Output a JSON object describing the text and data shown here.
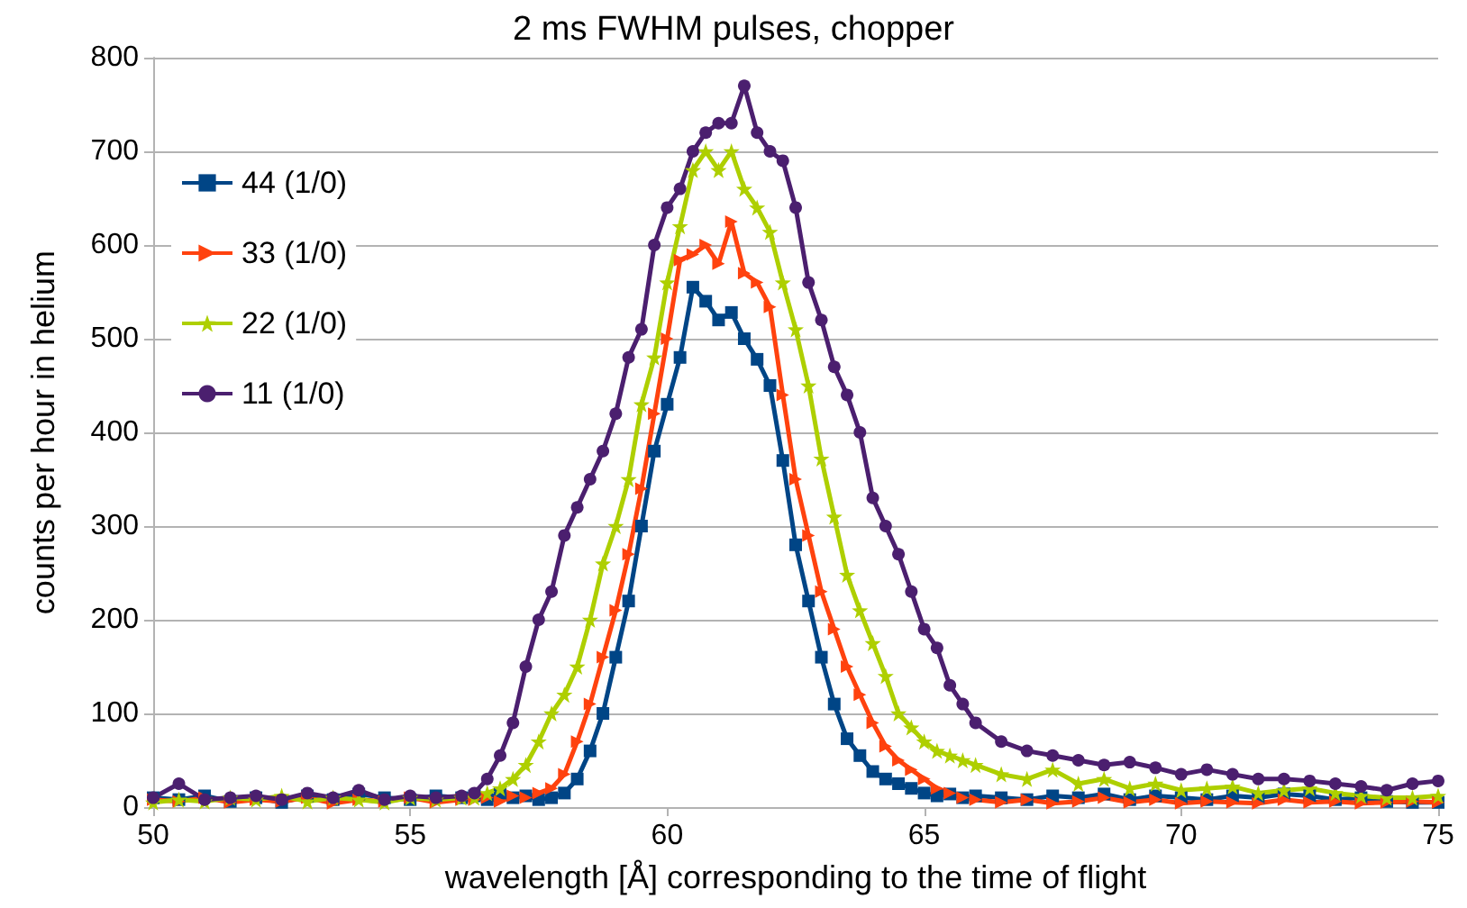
{
  "chart_data": {
    "type": "line",
    "title": "2 ms FWHM pulses, chopper",
    "xlabel": "wavelength [Å] corresponding to the time of flight",
    "ylabel": "counts per hour in helium",
    "x": [
      50,
      50.5,
      51,
      51.5,
      52,
      52.5,
      53,
      53.5,
      54,
      54.5,
      55,
      55.5,
      56,
      56.25,
      56.5,
      56.75,
      57,
      57.25,
      57.5,
      57.75,
      58,
      58.25,
      58.5,
      58.75,
      59,
      59.25,
      59.5,
      59.75,
      60,
      60.25,
      60.5,
      60.75,
      61,
      61.25,
      61.5,
      61.75,
      62,
      62.25,
      62.5,
      62.75,
      63,
      63.25,
      63.5,
      63.75,
      64,
      64.25,
      64.5,
      64.75,
      65,
      65.25,
      65.5,
      65.75,
      66,
      66.5,
      67,
      67.5,
      68,
      68.5,
      69,
      69.5,
      70,
      70.5,
      71,
      71.5,
      72,
      72.5,
      73,
      73.5,
      74,
      74.5,
      75
    ],
    "series": [
      {
        "name": "44 (1/0)",
        "color": "#004586",
        "marker": "square",
        "values": [
          10,
          8,
          12,
          6,
          10,
          5,
          12,
          8,
          14,
          10,
          8,
          12,
          10,
          12,
          8,
          15,
          10,
          12,
          8,
          10,
          15,
          30,
          60,
          100,
          160,
          220,
          300,
          380,
          430,
          480,
          555,
          540,
          520,
          528,
          500,
          478,
          450,
          370,
          280,
          220,
          160,
          110,
          73,
          55,
          38,
          30,
          25,
          20,
          15,
          12,
          14,
          10,
          12,
          10,
          8,
          12,
          10,
          14,
          8,
          12,
          10,
          8,
          12,
          10,
          14,
          12,
          8,
          10,
          6,
          5,
          5
        ]
      },
      {
        "name": "33 (1/0)",
        "color": "#ff420e",
        "marker": "triangle",
        "values": [
          8,
          6,
          10,
          5,
          8,
          6,
          10,
          4,
          8,
          6,
          10,
          5,
          8,
          8,
          10,
          6,
          12,
          10,
          15,
          20,
          35,
          70,
          110,
          160,
          210,
          270,
          340,
          420,
          500,
          584,
          590,
          600,
          580,
          625,
          570,
          560,
          534,
          440,
          350,
          290,
          230,
          190,
          150,
          120,
          90,
          65,
          50,
          40,
          30,
          20,
          15,
          10,
          8,
          5,
          8,
          4,
          6,
          10,
          5,
          8,
          4,
          6,
          5,
          4,
          8,
          5,
          6,
          4,
          5,
          6,
          5
        ]
      },
      {
        "name": "22 (1/0)",
        "color": "#aecf00",
        "marker": "star",
        "values": [
          5,
          8,
          6,
          10,
          8,
          12,
          6,
          10,
          8,
          5,
          10,
          8,
          10,
          10,
          15,
          20,
          30,
          45,
          70,
          100,
          120,
          150,
          200,
          260,
          300,
          350,
          430,
          480,
          560,
          620,
          680,
          700,
          680,
          700,
          660,
          640,
          614,
          560,
          510,
          450,
          372,
          310,
          248,
          210,
          175,
          140,
          100,
          85,
          70,
          60,
          55,
          50,
          45,
          35,
          30,
          40,
          25,
          30,
          20,
          25,
          18,
          20,
          22,
          15,
          18,
          20,
          15,
          12,
          10,
          10,
          12
        ]
      },
      {
        "name": "11 (1/0)",
        "color": "#4b1f6f",
        "marker": "circle",
        "values": [
          10,
          25,
          8,
          10,
          12,
          8,
          15,
          10,
          18,
          8,
          12,
          10,
          12,
          15,
          30,
          55,
          90,
          150,
          200,
          230,
          290,
          320,
          350,
          380,
          420,
          480,
          510,
          600,
          640,
          660,
          700,
          720,
          730,
          730,
          770,
          720,
          700,
          690,
          640,
          560,
          520,
          470,
          440,
          400,
          330,
          300,
          270,
          230,
          190,
          170,
          130,
          110,
          90,
          70,
          60,
          55,
          50,
          45,
          48,
          42,
          35,
          40,
          35,
          30,
          30,
          28,
          25,
          22,
          18,
          25,
          28
        ]
      }
    ],
    "xlim": [
      50,
      75
    ],
    "xticks": [
      50,
      55,
      60,
      65,
      70,
      75
    ],
    "ylim": [
      0,
      800
    ],
    "yticks": [
      0,
      100,
      200,
      300,
      400,
      500,
      600,
      700,
      800
    ],
    "grid": "y",
    "legend": "left",
    "line_style": "solid"
  }
}
